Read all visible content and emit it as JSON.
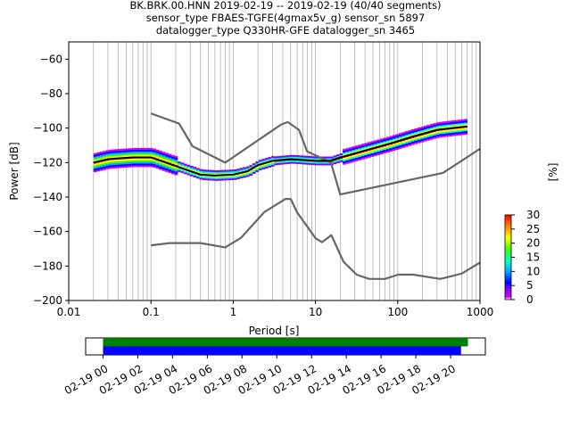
{
  "title_lines": [
    "BK.BRK.00.HNN   2019-02-19 -- 2019-02-19  (40/40 segments)",
    "sensor_type FBAES-TGFE(4gmax5v_g) sensor_sn 5897",
    "datalogger_type Q330HR-GFE datalogger_sn 3465"
  ],
  "chart_data": {
    "type": "heatmap",
    "xlabel": "Period [s]",
    "ylabel": "Power [dB]",
    "x_scale": "log",
    "xlim": [
      0.01,
      1000
    ],
    "ylim": [
      -200,
      -50
    ],
    "x_ticks": [
      0.01,
      0.1,
      1,
      10,
      100,
      1000
    ],
    "x_tick_labels": [
      "0.01",
      "0.1",
      "1",
      "10",
      "100",
      "1000"
    ],
    "y_ticks": [
      -200,
      -180,
      -160,
      -140,
      -120,
      -100,
      -80,
      -60
    ],
    "y_tick_labels": [
      "−200",
      "−180",
      "−160",
      "−140",
      "−120",
      "−100",
      "−80",
      "−60"
    ],
    "grid": "x-major-and-minor",
    "colorbar": {
      "label": "[%]",
      "range": [
        0,
        30
      ],
      "ticks": [
        0,
        5,
        10,
        15,
        20,
        25,
        30
      ],
      "tick_labels": [
        "0",
        "5",
        "10",
        "15",
        "20",
        "25",
        "30"
      ]
    },
    "series": [
      {
        "name": "NHNM",
        "color": "#666666",
        "points": [
          [
            0.1,
            -91.5
          ],
          [
            0.22,
            -97.4
          ],
          [
            0.32,
            -110.5
          ],
          [
            0.8,
            -120
          ],
          [
            3.8,
            -98
          ],
          [
            4.6,
            -96.5
          ],
          [
            6.3,
            -101
          ],
          [
            7.9,
            -113.5
          ],
          [
            15.4,
            -120
          ],
          [
            20,
            -138.5
          ],
          [
            354.8,
            -126
          ],
          [
            1000,
            -112
          ]
        ]
      },
      {
        "name": "NLNM",
        "color": "#666666",
        "points": [
          [
            0.1,
            -168
          ],
          [
            0.17,
            -166.7
          ],
          [
            0.4,
            -166.7
          ],
          [
            0.8,
            -169.2
          ],
          [
            1.24,
            -163.7
          ],
          [
            2.4,
            -148.6
          ],
          [
            4.3,
            -141.1
          ],
          [
            5,
            -141.1
          ],
          [
            6,
            -149
          ],
          [
            10,
            -163.8
          ],
          [
            12,
            -166.2
          ],
          [
            15.6,
            -162.1
          ],
          [
            21.9,
            -177.5
          ],
          [
            31.6,
            -185
          ],
          [
            45,
            -187.5
          ],
          [
            70,
            -187.5
          ],
          [
            101,
            -185
          ],
          [
            154,
            -185
          ],
          [
            328,
            -187.5
          ],
          [
            600,
            -184.4
          ],
          [
            1000,
            -178
          ]
        ]
      },
      {
        "name": "mode",
        "color": "#000000",
        "points": [
          [
            0.02,
            -120
          ],
          [
            0.03,
            -118
          ],
          [
            0.06,
            -117
          ],
          [
            0.1,
            -117
          ],
          [
            0.2,
            -122
          ],
          [
            0.4,
            -127
          ],
          [
            0.6,
            -127.5
          ],
          [
            1,
            -127
          ],
          [
            1.5,
            -125
          ],
          [
            2,
            -121.5
          ],
          [
            3,
            -119
          ],
          [
            5,
            -118
          ],
          [
            10,
            -119
          ],
          [
            15,
            -119
          ],
          [
            20,
            -117
          ],
          [
            40,
            -113
          ],
          [
            80,
            -109
          ],
          [
            150,
            -105
          ],
          [
            300,
            -101
          ],
          [
            700,
            -99
          ]
        ]
      }
    ],
    "timeline": {
      "x_tick_labels": [
        "02-19 00",
        "02-19 02",
        "02-19 04",
        "02-19 06",
        "02-19 08",
        "02-19 10",
        "02-19 12",
        "02-19 14",
        "02-19 16",
        "02-19 18",
        "02-19 20"
      ],
      "bars": [
        {
          "color": "#008000",
          "start_hours": 0,
          "end_hours": 21.0
        },
        {
          "color": "#0000ff",
          "start_hours": 0,
          "end_hours": 20.6
        }
      ],
      "x_range_hours": [
        -1,
        22.0
      ]
    }
  }
}
